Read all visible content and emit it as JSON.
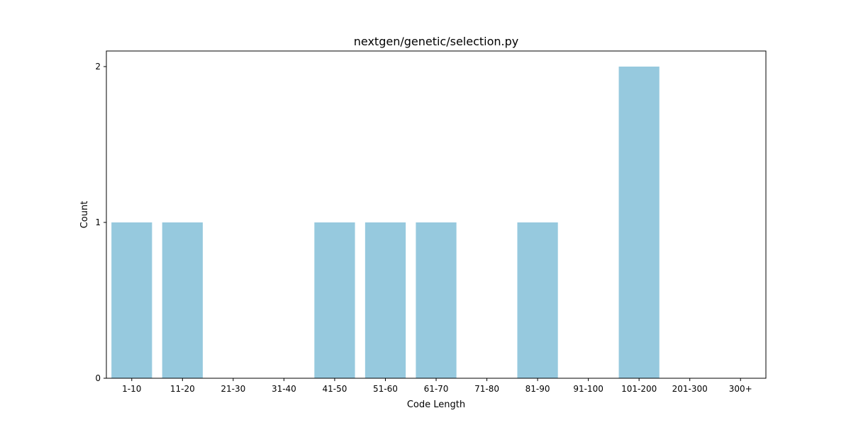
{
  "chart_data": {
    "type": "bar",
    "title": "nextgen/genetic/selection.py",
    "xlabel": "Code Length",
    "ylabel": "Count",
    "categories": [
      "1-10",
      "11-20",
      "21-30",
      "31-40",
      "41-50",
      "51-60",
      "61-70",
      "71-80",
      "81-90",
      "91-100",
      "101-200",
      "201-300",
      "300+"
    ],
    "values": [
      1,
      1,
      0,
      0,
      1,
      1,
      1,
      0,
      1,
      0,
      2,
      0,
      0
    ],
    "ylim": [
      0,
      2.1
    ],
    "yticks": [
      0,
      1,
      2
    ],
    "bar_color": "#96c9de",
    "grid": false,
    "legend": "none"
  }
}
